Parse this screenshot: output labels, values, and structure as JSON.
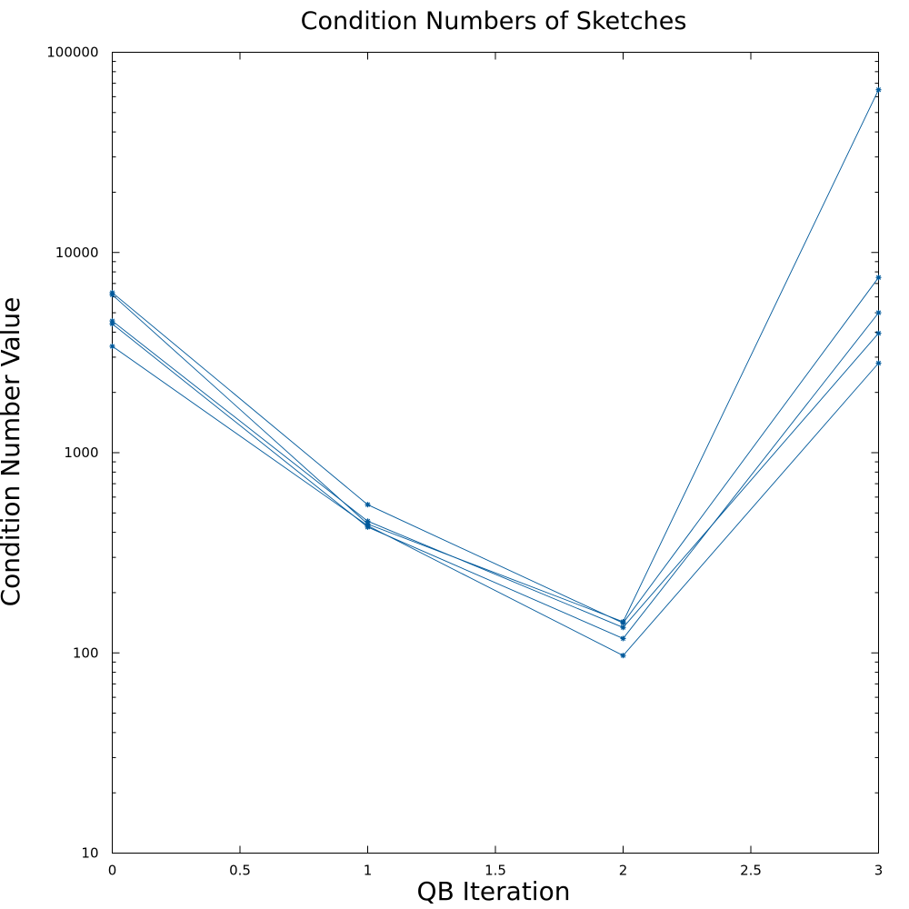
{
  "chart_data": {
    "type": "line",
    "title": "Condition Numbers of Sketches",
    "xlabel": "QB Iteration",
    "ylabel": "Condition Number Value",
    "xlim": [
      0,
      3
    ],
    "ylim": [
      10,
      100000
    ],
    "y_scale": "log",
    "grid": false,
    "legend": "none",
    "x_ticks": [
      0,
      0.5,
      1,
      1.5,
      2,
      2.5,
      3
    ],
    "x_tick_labels": [
      "0",
      "0.5",
      "1",
      "1.5",
      "2",
      "2.5",
      "3"
    ],
    "y_ticks": [
      10,
      100,
      1000,
      10000,
      100000
    ],
    "y_tick_labels": [
      "10",
      "100",
      "1000",
      "10000",
      "100000"
    ],
    "color": "#00599b",
    "x": [
      0,
      1,
      2,
      3
    ],
    "series": [
      {
        "values": [
          6300,
          550,
          141,
          7500
        ]
      },
      {
        "values": [
          6150,
          440,
          143,
          65000
        ]
      },
      {
        "values": [
          4550,
          455,
          134,
          3950
        ]
      },
      {
        "values": [
          4400,
          425,
          118,
          5000
        ]
      },
      {
        "values": [
          3400,
          432,
          97,
          2800
        ]
      }
    ]
  }
}
